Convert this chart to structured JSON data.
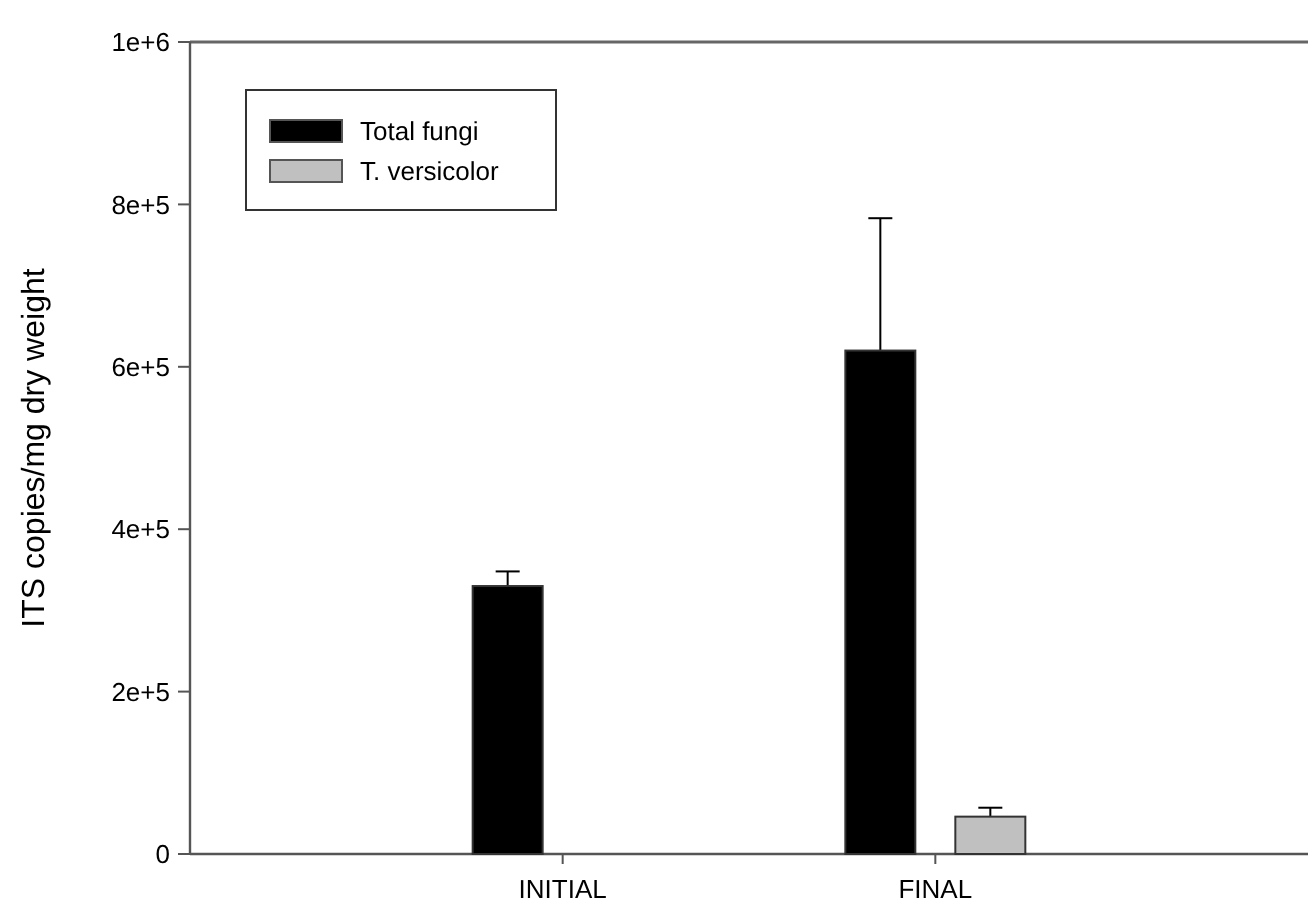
{
  "chart_data": {
    "type": "bar",
    "ylabel": "ITS copies/mg dry weight",
    "categories": [
      "INITIAL",
      "FINAL"
    ],
    "series": [
      {
        "name": "Total fungi",
        "color": "#000000",
        "values": [
          330000,
          620000
        ],
        "errors": [
          18000,
          163000
        ]
      },
      {
        "name": "T. versicolor",
        "color": "#c0c0c0",
        "values": [
          null,
          46000
        ],
        "errors": [
          null,
          11000
        ]
      }
    ],
    "ylim": [
      0,
      1000000
    ],
    "yticks": [
      {
        "value": 0,
        "label": "0"
      },
      {
        "value": 200000,
        "label": "2e+5"
      },
      {
        "value": 400000,
        "label": "4e+5"
      },
      {
        "value": 600000,
        "label": "6e+5"
      },
      {
        "value": 800000,
        "label": "8e+5"
      },
      {
        "value": 1000000,
        "label": "1e+6"
      }
    ],
    "legend": "top left",
    "grid": false
  }
}
